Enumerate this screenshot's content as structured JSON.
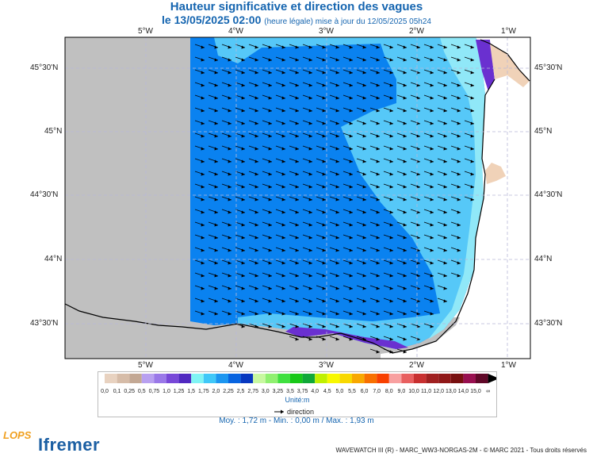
{
  "header": {
    "title": "Hauteur significative et direction des vagues",
    "date": "le 13/05/2025 02:00",
    "update_note": "(heure légale) mise à jour du 12/05/2025 05h24"
  },
  "axes": {
    "lon_ticks": [
      "5°W",
      "4°W",
      "3°W",
      "2°W",
      "1°W"
    ],
    "lat_ticks": [
      "45°30'N",
      "45°N",
      "44°30'N",
      "44°N",
      "43°30'N"
    ]
  },
  "legend": {
    "labels": [
      "0,0",
      "0,1",
      "0,25",
      "0,5",
      "0,75",
      "1,0",
      "1,25",
      "1,5",
      "1,75",
      "2,0",
      "2,25",
      "2,5",
      "2,75",
      "3,0",
      "3,25",
      "3,5",
      "3,75",
      "4,0",
      "4,5",
      "5,0",
      "5,5",
      "6,0",
      "7,0",
      "8,0",
      "9,0",
      "10,0",
      "11,0",
      "12,0",
      "13,0",
      "14,0",
      "15,0",
      "∞"
    ],
    "colors": [
      "#e8d2c0",
      "#d6bca8",
      "#c3a894",
      "#b8a0f0",
      "#9a78e8",
      "#7848d8",
      "#5028c0",
      "#80f4f4",
      "#40c8f8",
      "#1c96f0",
      "#0864e0",
      "#0838c0",
      "#c8f8a0",
      "#90f070",
      "#40e040",
      "#18c818",
      "#10a838",
      "#c0f000",
      "#f8f800",
      "#f8d800",
      "#f8a800",
      "#f87000",
      "#f84000",
      "#f8a0a0",
      "#e86060",
      "#c83030",
      "#a02020",
      "#901818",
      "#781010",
      "#981050",
      "#600828"
    ],
    "unit": "Unité:m",
    "direction_label": "direction"
  },
  "stats": {
    "text": "Moy. : 1,72 m   -   Min. : 0,00 m / Max. : 1,93 m"
  },
  "footer": {
    "credit": "WAVEWATCH III (R) - MARC_WW3-NORGAS-2M - © MARC 2021 - Tous droits réservés"
  },
  "logos": {
    "lops": "LOPS",
    "ifremer": "Ifremer"
  },
  "colors": {
    "land_grey": "#c0c0c0",
    "coast_land": "#f0d2b8",
    "sea_deep": "#0a82f0",
    "sea_light": "#56c8f8",
    "sea_lighter": "#90e8f8",
    "title_blue": "#1565b0"
  }
}
